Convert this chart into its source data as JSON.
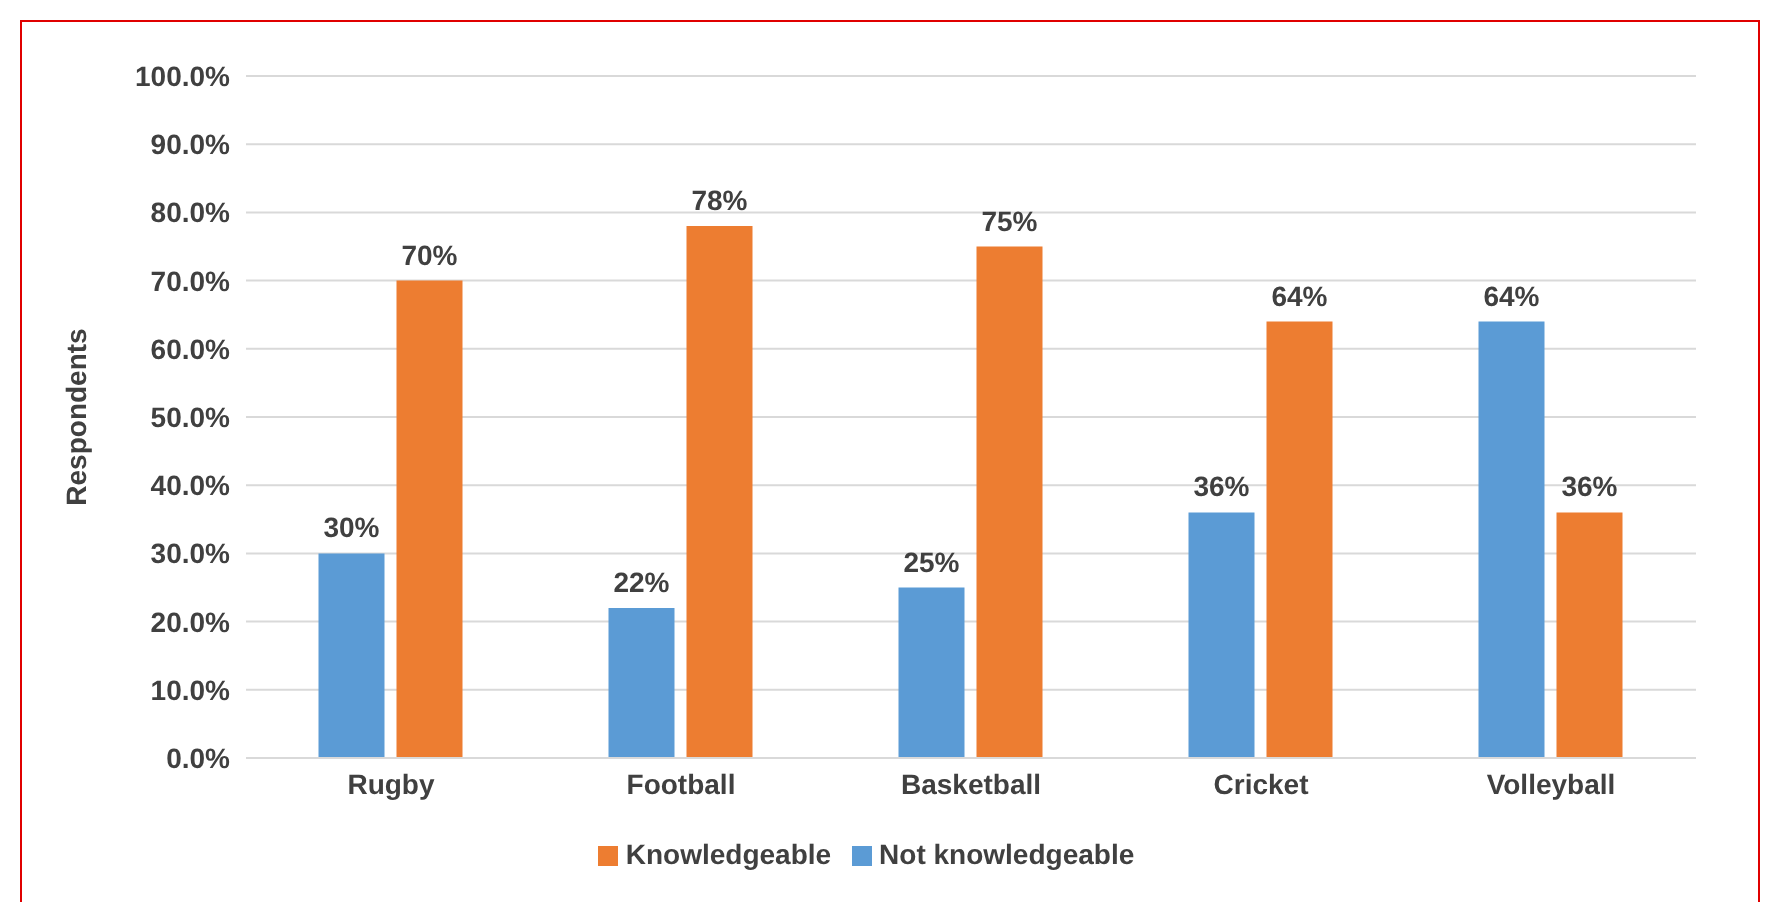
{
  "chart_data": {
    "type": "bar",
    "ylabel": "Respondents",
    "categories": [
      "Rugby",
      "Football",
      "Basketball",
      "Cricket",
      "Volleyball"
    ],
    "series": [
      {
        "name": "Not knowledgeable",
        "color": "#5b9bd5",
        "values": [
          30,
          22,
          25,
          36,
          64
        ],
        "value_labels": [
          "30%",
          "22%",
          "25%",
          "36%",
          "64%"
        ]
      },
      {
        "name": "Knowledgeable",
        "color": "#ed7d31",
        "values": [
          70,
          78,
          75,
          64,
          36
        ],
        "value_labels": [
          "70%",
          "78%",
          "75%",
          "64%",
          "36%"
        ]
      }
    ],
    "ylim": [
      0,
      100
    ],
    "yticks": [
      {
        "value": 0,
        "label": "0.0%"
      },
      {
        "value": 10,
        "label": "10.0%"
      },
      {
        "value": 20,
        "label": "20.0%"
      },
      {
        "value": 30,
        "label": "30.0%"
      },
      {
        "value": 40,
        "label": "40.0%"
      },
      {
        "value": 50,
        "label": "50.0%"
      },
      {
        "value": 60,
        "label": "60.0%"
      },
      {
        "value": 70,
        "label": "70.0%"
      },
      {
        "value": 80,
        "label": "80.0%"
      },
      {
        "value": 90,
        "label": "90.0%"
      },
      {
        "value": 100,
        "label": "100.0%"
      }
    ],
    "grid": "y",
    "legend": "bottom"
  }
}
